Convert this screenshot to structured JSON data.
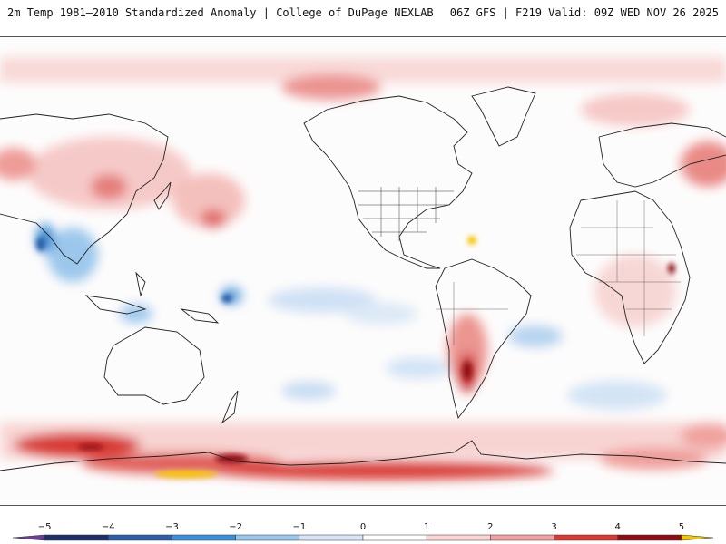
{
  "header": {
    "title_left": "2m Temp 1981–2010 Standardized Anomaly | College of DuPage NEXLAB",
    "title_right": "06Z GFS | F219 Valid: 09Z WED NOV 26 2025"
  },
  "map": {
    "variable": "2m Temp Standardized Anomaly",
    "projection": "cylindrical equidistant, Pacific-centered"
  },
  "legend": {
    "ticks": [
      "−5",
      "−4",
      "−3",
      "−2",
      "−1",
      "0",
      "1",
      "2",
      "3",
      "4",
      "5"
    ],
    "tick_values": [
      -5,
      -4,
      -3,
      -2,
      -1,
      0,
      1,
      2,
      3,
      4,
      5
    ],
    "range": [
      -5.5,
      5.5
    ],
    "bins": [
      {
        "from": -5.5,
        "to": -5,
        "color": "#6a3d9a"
      },
      {
        "from": -5,
        "to": -4,
        "color": "#1c2f6b"
      },
      {
        "from": -4,
        "to": -3,
        "color": "#2c5fa8"
      },
      {
        "from": -3,
        "to": -2,
        "color": "#3b8fd6"
      },
      {
        "from": -2,
        "to": -1,
        "color": "#9cc7ec"
      },
      {
        "from": -1,
        "to": 0,
        "color": "#d7e6f6"
      },
      {
        "from": 0,
        "to": 1,
        "color": "#ffffff"
      },
      {
        "from": 1,
        "to": 2,
        "color": "#f9d6d4"
      },
      {
        "from": 2,
        "to": 3,
        "color": "#f0a3a0"
      },
      {
        "from": 3,
        "to": 4,
        "color": "#d83a34"
      },
      {
        "from": 4,
        "to": 5,
        "color": "#8e0d14"
      },
      {
        "from": 5,
        "to": 5.5,
        "color": "#f5c400"
      }
    ]
  }
}
